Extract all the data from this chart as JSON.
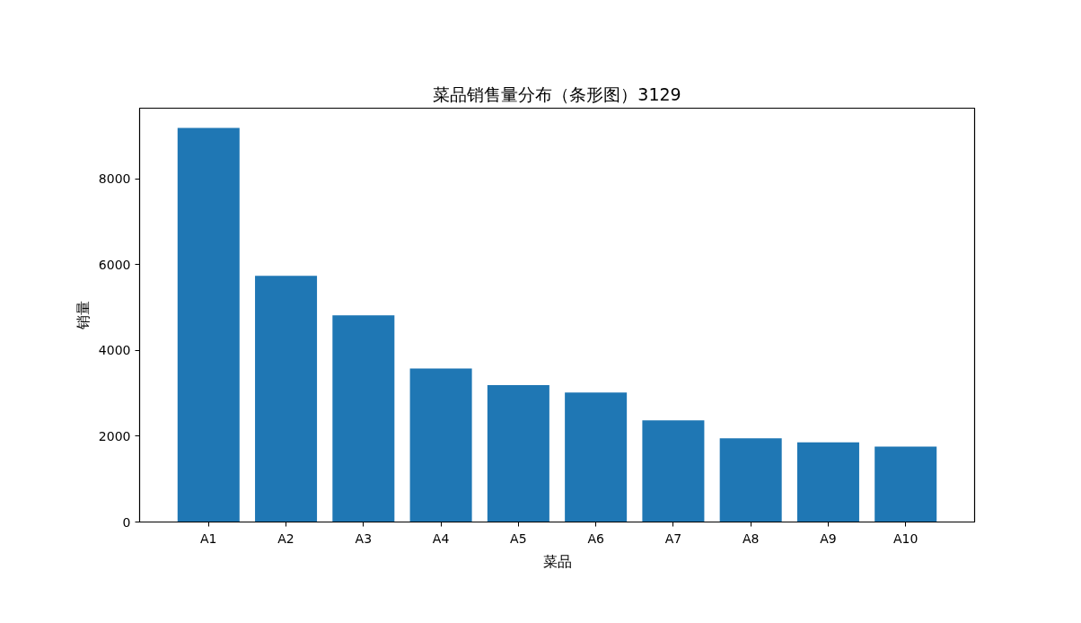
{
  "chart_data": {
    "type": "bar",
    "title": "菜品销售量分布（条形图）3129",
    "xlabel": "菜品",
    "ylabel": "销量",
    "categories": [
      "A1",
      "A2",
      "A3",
      "A4",
      "A5",
      "A6",
      "A7",
      "A8",
      "A9",
      "A10"
    ],
    "values": [
      9190,
      5740,
      4820,
      3580,
      3190,
      3020,
      2370,
      1950,
      1860,
      1760
    ],
    "color": "#1f77b4",
    "ylim": [
      0,
      9650
    ],
    "yticks": [
      0,
      2000,
      4000,
      6000,
      8000
    ]
  }
}
